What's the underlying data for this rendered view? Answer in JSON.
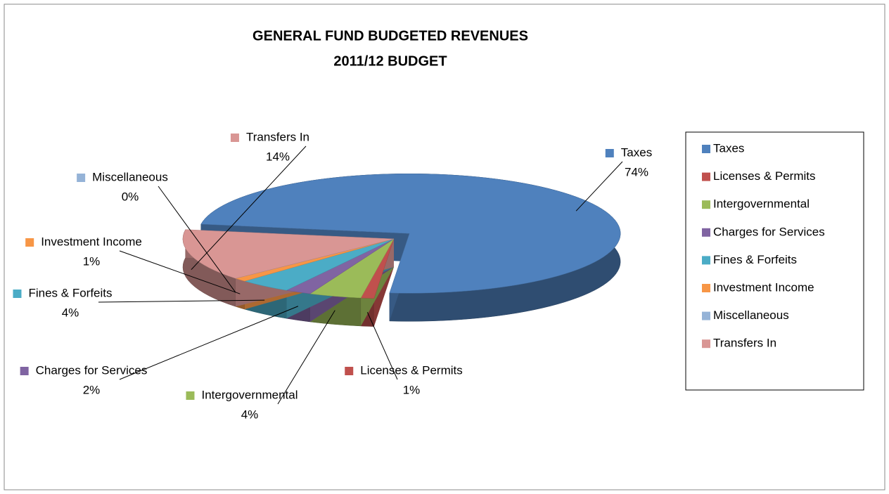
{
  "chart_data": {
    "type": "pie",
    "title": "GENERAL FUND BUDGETED REVENUES",
    "subtitle": "2011/12 BUDGET",
    "categories": [
      "Taxes",
      "Licenses & Permits",
      "Intergovernmental",
      "Charges for Services",
      "Fines & Forfeits",
      "Investment Income",
      "Miscellaneous",
      "Transfers In"
    ],
    "values": [
      74,
      1,
      4,
      2,
      4,
      1,
      0,
      14
    ],
    "value_labels": [
      "74%",
      "1%",
      "4%",
      "2%",
      "4%",
      "1%",
      "0%",
      "14%"
    ],
    "colors": [
      "#4f81bd",
      "#c0504d",
      "#9bbb59",
      "#8064a2",
      "#4bacc6",
      "#f79646",
      "#95b3d7",
      "#d99694"
    ],
    "legend": "right"
  }
}
